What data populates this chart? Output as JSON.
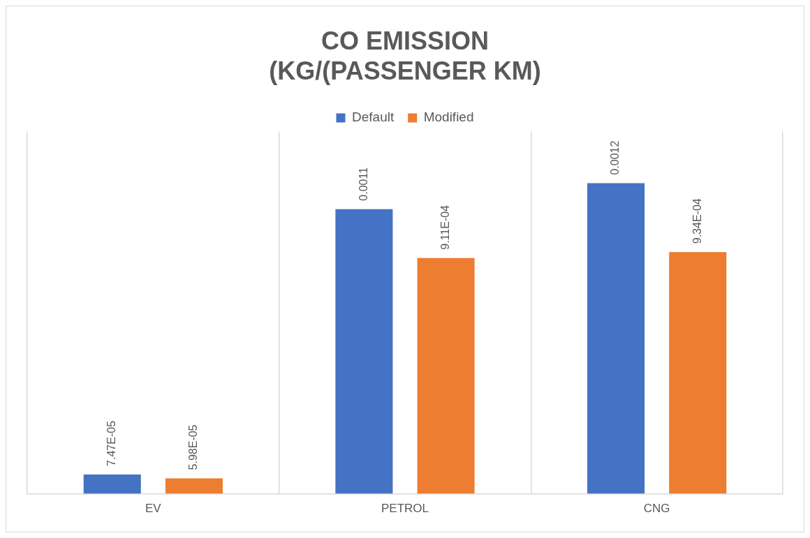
{
  "chart_data": {
    "type": "bar",
    "title": "CO EMISSION\n(KG/(PASSENGER KM)",
    "categories": [
      "EV",
      "PETROL",
      "CNG"
    ],
    "series": [
      {
        "name": "Default",
        "color": "#4472c4",
        "values": [
          7.47e-05,
          0.0011,
          0.0012
        ],
        "value_labels": [
          "7.47E-05",
          "0.0011",
          "0.0012"
        ]
      },
      {
        "name": "Modified",
        "color": "#ed7d31",
        "values": [
          5.98e-05,
          0.000911,
          0.000934
        ],
        "value_labels": [
          "5.98E-05",
          "9.11E-04",
          "9.34E-04"
        ]
      }
    ],
    "grid": "x",
    "legend": "top"
  }
}
